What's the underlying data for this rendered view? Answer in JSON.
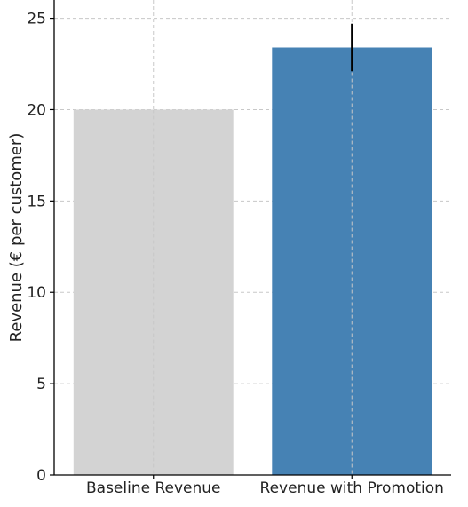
{
  "chart_data": {
    "type": "bar",
    "title": "",
    "xlabel": "",
    "ylabel": "Revenue (€ per customer)",
    "categories": [
      "Baseline Revenue",
      "Revenue with Promotion"
    ],
    "values": [
      20.0,
      23.4
    ],
    "error": [
      null,
      1.3
    ],
    "colors": [
      "#d3d3d3",
      "#4682b4"
    ],
    "error_color": "#000000",
    "ylim": [
      0,
      26
    ],
    "yticks": [
      0,
      5,
      10,
      15,
      20,
      25
    ],
    "ytick_labels": [
      "0",
      "5",
      "10",
      "15",
      "20",
      "25"
    ],
    "grid": true,
    "grid_style": "dashed"
  }
}
